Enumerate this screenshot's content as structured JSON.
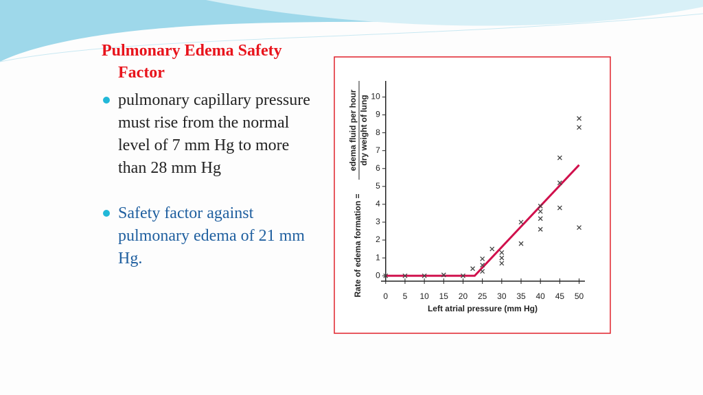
{
  "slide": {
    "title": "Pulmonary Edema Safety Factor",
    "bullets": [
      "pulmonary capillary pressure must rise from the normal level of 7 mm Hg to more than 28 mm Hg",
      "Safety factor against pulmonary edema of 21 mm Hg."
    ]
  },
  "chart_data": {
    "type": "scatter",
    "x_label": "Left atrial pressure (mm Hg)",
    "y_label": [
      "Rate of edema formation =",
      "edema fluid per hour",
      "dry weight of lung"
    ],
    "xlim": [
      -1.2,
      51.5
    ],
    "ylim": [
      -0.3,
      10.9
    ],
    "xticks": [
      0,
      5,
      10,
      15,
      20,
      25,
      30,
      35,
      40,
      45,
      50
    ],
    "yticks": [
      0,
      1,
      2,
      3,
      4,
      5,
      6,
      7,
      8,
      9,
      10
    ],
    "points": {
      "color": "#444444",
      "x": [
        0,
        5,
        10,
        15,
        20,
        22.5,
        25,
        25,
        25,
        27.5,
        30,
        30,
        30,
        35,
        35,
        40,
        40,
        40,
        40,
        45,
        45,
        45,
        50,
        50,
        50
      ],
      "values": [
        0,
        0,
        0,
        0.05,
        0,
        0.4,
        0.95,
        0.6,
        0.25,
        1.5,
        1.3,
        1.0,
        0.7,
        3.0,
        1.8,
        3.9,
        3.6,
        3.2,
        2.6,
        6.6,
        5.2,
        3.8,
        8.8,
        8.3,
        2.7
      ]
    },
    "fit_line": {
      "color": "#d0104c",
      "x": [
        0,
        23,
        50
      ],
      "values": [
        0,
        0,
        6.2
      ]
    }
  }
}
